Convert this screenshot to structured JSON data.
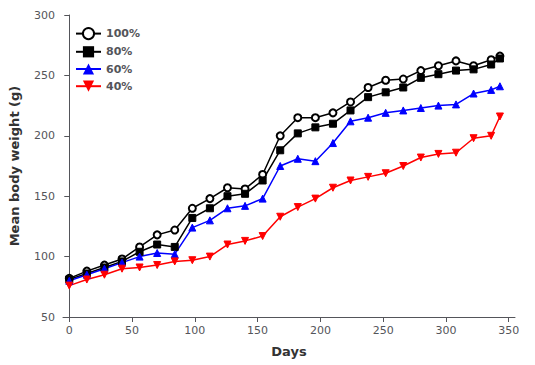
{
  "chart_data": {
    "type": "line",
    "xlabel": "Days",
    "ylabel": "Mean body weight (g)",
    "x": [
      0,
      14,
      28,
      42,
      56,
      70,
      84,
      98,
      112,
      126,
      140,
      154,
      168,
      182,
      196,
      210,
      224,
      238,
      252,
      266,
      280,
      294,
      308,
      322,
      336,
      343
    ],
    "series": [
      {
        "name": "100%",
        "color": "black",
        "marker": "circle_open",
        "values": [
          82,
          88,
          93,
          98,
          108,
          118,
          122,
          140,
          148,
          157,
          156,
          168,
          200,
          215,
          215,
          219,
          228,
          240,
          246,
          247,
          254,
          258,
          262,
          258,
          263,
          266
        ]
      },
      {
        "name": "80%",
        "color": "black",
        "marker": "square",
        "values": [
          81,
          86,
          91,
          96,
          104,
          110,
          108,
          132,
          140,
          150,
          152,
          163,
          188,
          202,
          207,
          210,
          221,
          232,
          236,
          240,
          248,
          251,
          254,
          255,
          259,
          264
        ]
      },
      {
        "name": "60%",
        "color": "blue",
        "marker": "triangle_up",
        "values": [
          80,
          85,
          90,
          95,
          100,
          103,
          102,
          124,
          130,
          140,
          142,
          148,
          175,
          181,
          179,
          194,
          212,
          215,
          219,
          221,
          223,
          225,
          226,
          235,
          238,
          241
        ]
      },
      {
        "name": "40%",
        "color": "red",
        "marker": "triangle_down",
        "values": [
          76,
          81,
          85,
          90,
          91,
          93,
          96,
          97,
          100,
          110,
          113,
          117,
          133,
          141,
          148,
          157,
          163,
          166,
          169,
          175,
          182,
          185,
          186,
          198,
          200,
          216
        ]
      }
    ],
    "xlim": [
      -5,
      355
    ],
    "ylim": [
      50,
      300
    ],
    "xticks": [
      0,
      50,
      100,
      150,
      200,
      250,
      300,
      350
    ],
    "yticks": [
      50,
      100,
      150,
      200,
      250,
      300
    ],
    "grid": false,
    "legend": "upper left"
  }
}
